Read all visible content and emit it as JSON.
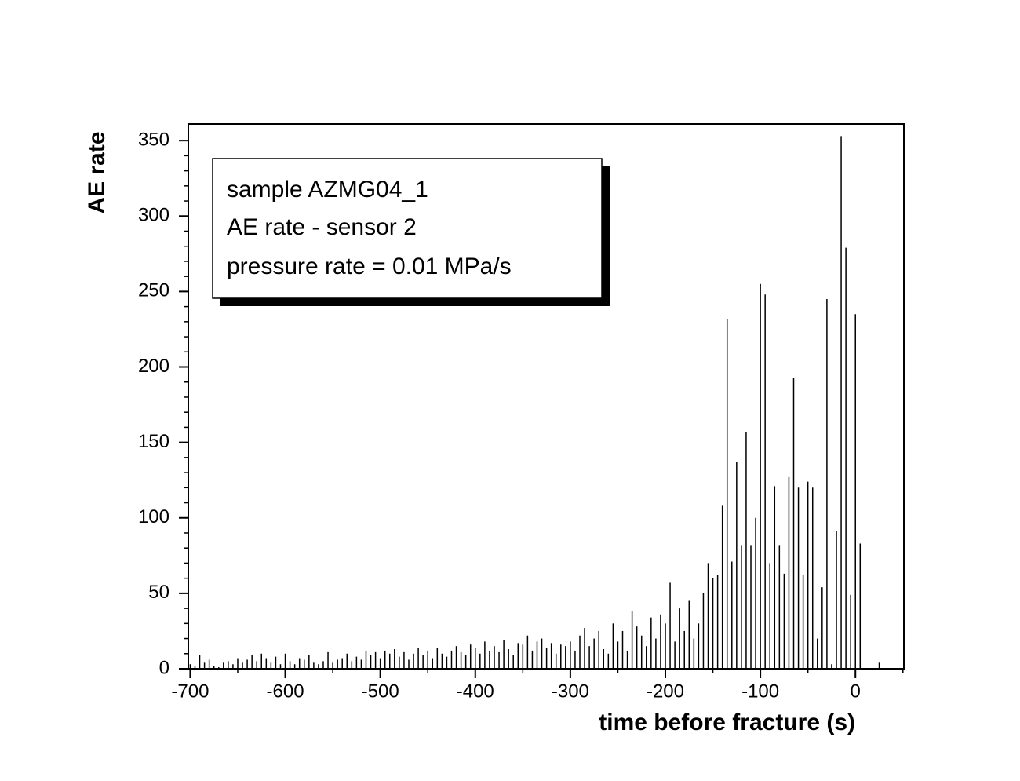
{
  "chart_data": {
    "type": "needle",
    "xlabel": "time before fracture (s)",
    "ylabel": "AE rate",
    "annotations": [
      "sample AZMG04_1",
      "AE rate - sensor 2",
      "pressure rate = 0.01 MPa/s"
    ],
    "color": "#000000",
    "x": [
      -700,
      -695,
      -690,
      -685,
      -680,
      -675,
      -670,
      -665,
      -660,
      -655,
      -650,
      -645,
      -640,
      -635,
      -630,
      -625,
      -620,
      -615,
      -610,
      -605,
      -600,
      -595,
      -590,
      -585,
      -580,
      -575,
      -570,
      -565,
      -560,
      -555,
      -550,
      -545,
      -540,
      -535,
      -530,
      -525,
      -520,
      -515,
      -510,
      -505,
      -500,
      -495,
      -490,
      -485,
      -480,
      -475,
      -470,
      -465,
      -460,
      -455,
      -450,
      -445,
      -440,
      -435,
      -430,
      -425,
      -420,
      -415,
      -410,
      -405,
      -400,
      -395,
      -390,
      -385,
      -380,
      -375,
      -370,
      -365,
      -360,
      -355,
      -350,
      -345,
      -340,
      -335,
      -330,
      -325,
      -320,
      -315,
      -310,
      -305,
      -300,
      -295,
      -290,
      -285,
      -280,
      -275,
      -270,
      -265,
      -260,
      -255,
      -250,
      -245,
      -240,
      -235,
      -230,
      -225,
      -220,
      -215,
      -210,
      -205,
      -200,
      -195,
      -190,
      -185,
      -180,
      -175,
      -170,
      -165,
      -160,
      -155,
      -150,
      -145,
      -140,
      -135,
      -130,
      -125,
      -120,
      -115,
      -110,
      -105,
      -100,
      -95,
      -90,
      -85,
      -80,
      -75,
      -70,
      -65,
      -60,
      -55,
      -50,
      -45,
      -40,
      -35,
      -30,
      -25,
      -20,
      -15,
      -10,
      -5,
      0,
      5,
      25
    ],
    "values": [
      3,
      2,
      9,
      4,
      6,
      2,
      1,
      4,
      5,
      3,
      7,
      4,
      6,
      9,
      5,
      10,
      7,
      4,
      8,
      3,
      10,
      5,
      3,
      7,
      6,
      9,
      4,
      3,
      5,
      11,
      4,
      6,
      7,
      10,
      5,
      8,
      6,
      12,
      9,
      11,
      7,
      12,
      10,
      13,
      8,
      11,
      6,
      10,
      14,
      9,
      12,
      7,
      14,
      10,
      8,
      12,
      15,
      11,
      9,
      16,
      14,
      10,
      18,
      12,
      15,
      11,
      19,
      13,
      9,
      17,
      16,
      22,
      12,
      18,
      20,
      14,
      17,
      10,
      16,
      15,
      18,
      12,
      22,
      27,
      15,
      20,
      25,
      13,
      10,
      30,
      18,
      25,
      12,
      38,
      28,
      22,
      15,
      34,
      20,
      36,
      30,
      57,
      18,
      40,
      25,
      45,
      20,
      30,
      50,
      70,
      60,
      62,
      108,
      232,
      71,
      137,
      82,
      157,
      82,
      100,
      255,
      248,
      70,
      121,
      82,
      63,
      127,
      193,
      120,
      62,
      124,
      120,
      20,
      54,
      245,
      3,
      91,
      353,
      279,
      49,
      235,
      83,
      4
    ],
    "xlim": [
      -702,
      51
    ],
    "ylim": [
      0,
      361
    ],
    "xticks": [
      -700,
      -600,
      -500,
      -400,
      -300,
      -200,
      -100,
      0
    ],
    "yticks": [
      0,
      50,
      100,
      150,
      200,
      250,
      300,
      350
    ],
    "xminorticks": [
      -650,
      -550,
      -450,
      -350,
      -250,
      -150,
      -50,
      50
    ],
    "yminorticks": [
      10,
      20,
      30,
      40,
      60,
      70,
      80,
      90,
      110,
      120,
      130,
      140,
      160,
      170,
      180,
      190,
      210,
      220,
      230,
      240,
      260,
      270,
      280,
      290,
      310,
      320,
      330,
      340
    ]
  }
}
